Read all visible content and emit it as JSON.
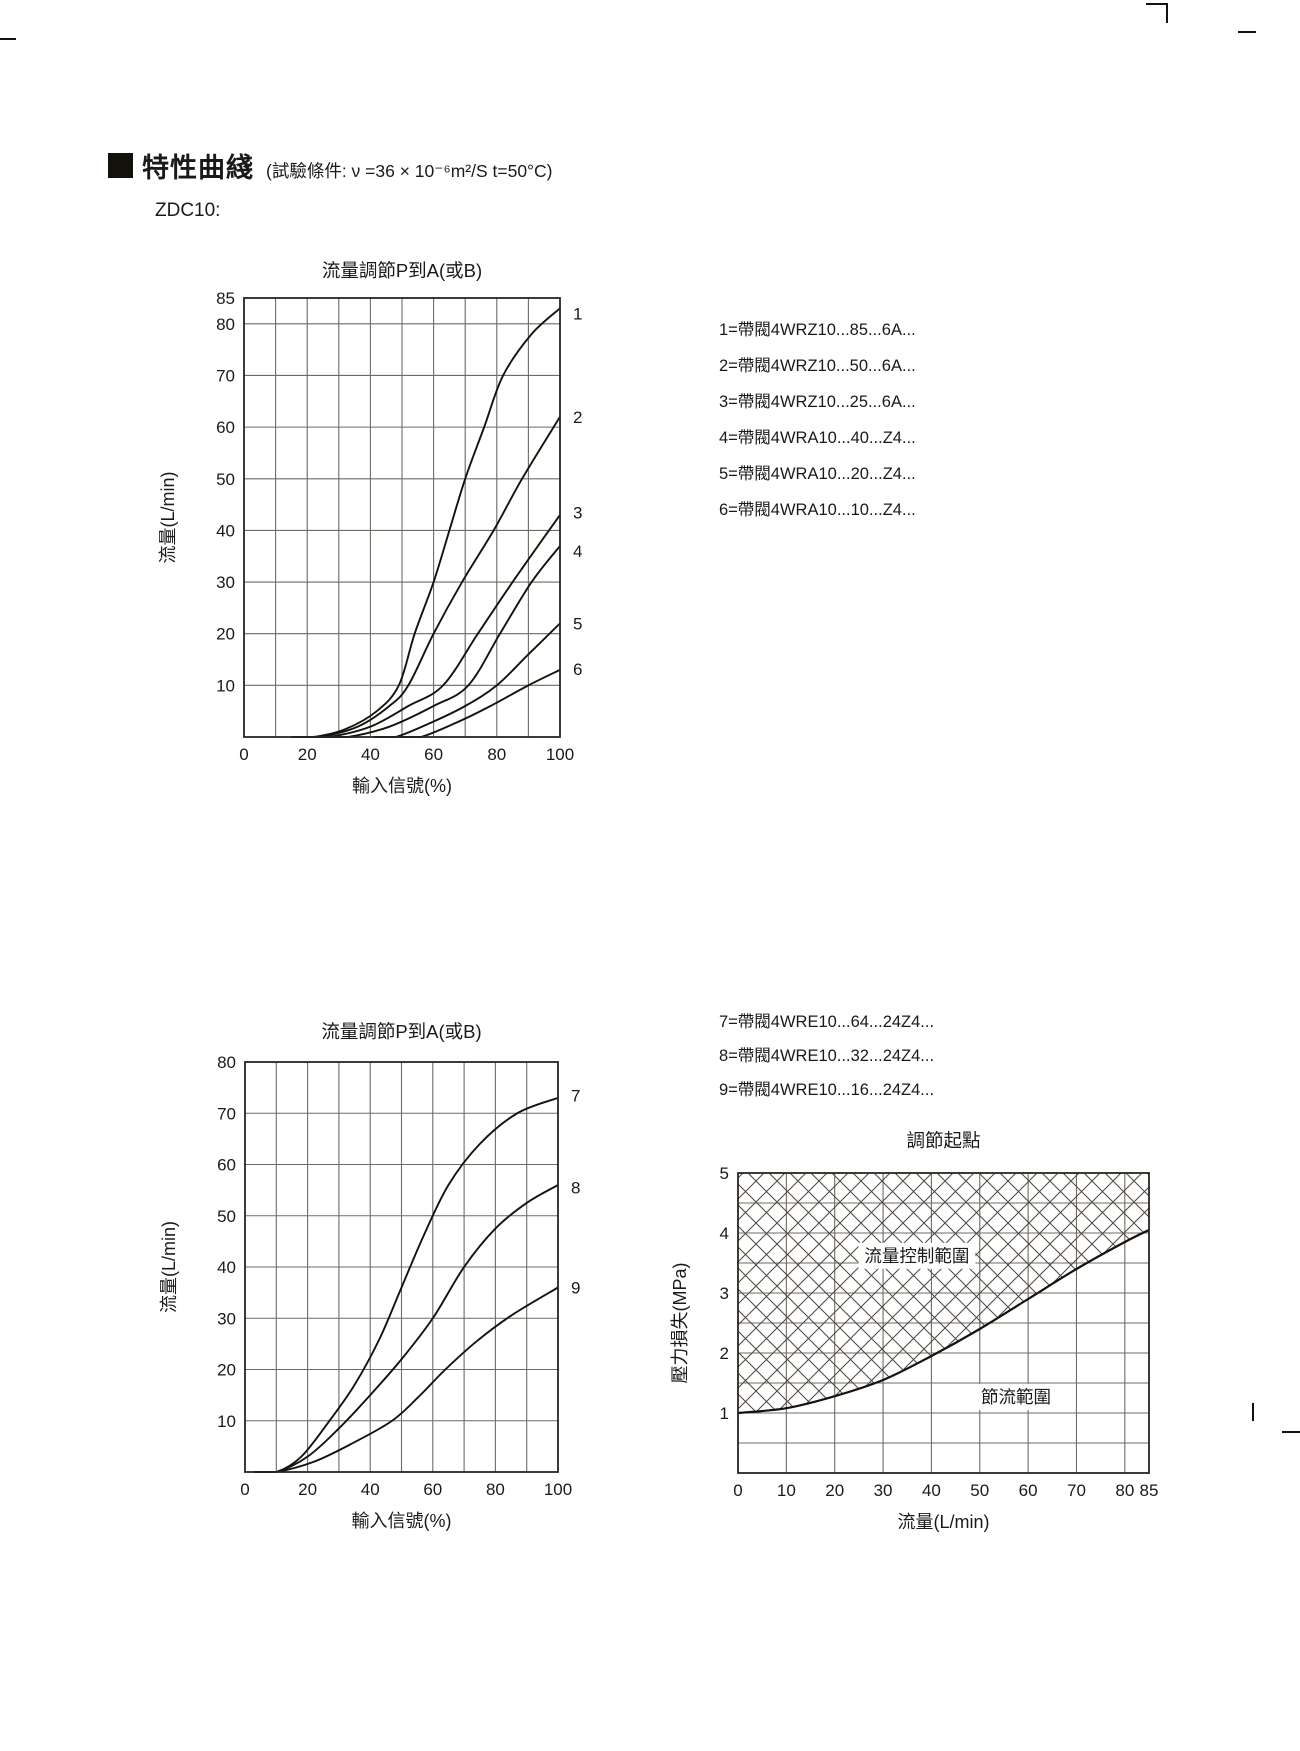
{
  "page": {
    "header_title": "特性曲綫",
    "header_condition": "(試驗條件: ν =36 × 10⁻⁶m²/S   t=50°C)",
    "model_label": "ZDC10:"
  },
  "colors": {
    "ink": "#1c1a18",
    "grid": "#6f6a64",
    "border": "#29251f",
    "curve": "#15120e",
    "hatch": "#4c463e"
  },
  "legend_group1": [
    "1=帶閥4WRZ10...85...6A...",
    "2=帶閥4WRZ10...50...6A...",
    "3=帶閥4WRZ10...25...6A...",
    "4=帶閥4WRA10...40...Z4...",
    "5=帶閥4WRA10...20...Z4...",
    "6=帶閥4WRA10...10...Z4..."
  ],
  "legend_group2": [
    "7=帶閥4WRE10...64...24Z4...",
    "8=帶閥4WRE10...32...24Z4...",
    "9=帶閥4WRE10...16...24Z4..."
  ],
  "chart_data": [
    {
      "type": "line",
      "title": "流量調節P到A(或B)",
      "xlabel": "輸入信號(%)",
      "ylabel": "流量(L/min)",
      "xlim": [
        0,
        100
      ],
      "ylim": [
        0,
        85
      ],
      "xticks": [
        0,
        20,
        40,
        60,
        80,
        100
      ],
      "yticks": [
        10,
        20,
        30,
        40,
        50,
        60,
        70,
        80,
        85
      ],
      "xgrid": [
        10,
        20,
        30,
        40,
        50,
        60,
        70,
        80,
        90
      ],
      "ygrid": [
        10,
        20,
        30,
        40,
        50,
        60,
        70,
        80
      ],
      "grid": true,
      "legend_position": "right-of-plot",
      "series": [
        {
          "name": "1",
          "label_y": 82,
          "points": [
            [
              22,
              0
            ],
            [
              32,
              1.5
            ],
            [
              42,
              5
            ],
            [
              49,
              10
            ],
            [
              54,
              20
            ],
            [
              60,
              30
            ],
            [
              65,
              40
            ],
            [
              70,
              50
            ],
            [
              76,
              60
            ],
            [
              82,
              70
            ],
            [
              91,
              78
            ],
            [
              100,
              83
            ]
          ]
        },
        {
          "name": "2",
          "label_y": 62,
          "points": [
            [
              24,
              0
            ],
            [
              36,
              2
            ],
            [
              46,
              6
            ],
            [
              52,
              10
            ],
            [
              60,
              20
            ],
            [
              69,
              30
            ],
            [
              79,
              40
            ],
            [
              88,
              50
            ],
            [
              100,
              62
            ]
          ]
        },
        {
          "name": "3",
          "label_y": 43.5,
          "points": [
            [
              27,
              0
            ],
            [
              40,
              2
            ],
            [
              52,
              6
            ],
            [
              63,
              10
            ],
            [
              74,
              20
            ],
            [
              85,
              30
            ],
            [
              100,
              43
            ]
          ]
        },
        {
          "name": "4",
          "label_y": 36,
          "points": [
            [
              33,
              0
            ],
            [
              46,
              2
            ],
            [
              60,
              6
            ],
            [
              71,
              10
            ],
            [
              81,
              20
            ],
            [
              91,
              30
            ],
            [
              100,
              37
            ]
          ]
        },
        {
          "name": "5",
          "label_y": 22,
          "points": [
            [
              48,
              0
            ],
            [
              60,
              3
            ],
            [
              70,
              6
            ],
            [
              80,
              10
            ],
            [
              90,
              16
            ],
            [
              100,
              22
            ]
          ]
        },
        {
          "name": "6",
          "label_y": 13.2,
          "points": [
            [
              56,
              0
            ],
            [
              68,
              3
            ],
            [
              78,
              6
            ],
            [
              90,
              10
            ],
            [
              100,
              13
            ]
          ]
        }
      ]
    },
    {
      "type": "line",
      "title": "流量調節P到A(或B)",
      "xlabel": "輸入信號(%)",
      "ylabel": "流量(L/min)",
      "xlim": [
        0,
        100
      ],
      "ylim": [
        0,
        80
      ],
      "xticks": [
        0,
        20,
        40,
        60,
        80,
        100
      ],
      "yticks": [
        10,
        20,
        30,
        40,
        50,
        60,
        70,
        80
      ],
      "xgrid": [
        10,
        20,
        30,
        40,
        50,
        60,
        70,
        80,
        90
      ],
      "ygrid": [
        10,
        20,
        30,
        40,
        50,
        60,
        70
      ],
      "grid": true,
      "legend_position": "right-of-plot",
      "series": [
        {
          "name": "7",
          "label_y": 73.5,
          "points": [
            [
              10,
              0
            ],
            [
              18,
              3
            ],
            [
              27,
              10
            ],
            [
              35,
              17
            ],
            [
              43,
              26
            ],
            [
              50,
              36
            ],
            [
              57,
              46
            ],
            [
              65,
              56
            ],
            [
              75,
              64
            ],
            [
              87,
              70
            ],
            [
              100,
              73
            ]
          ]
        },
        {
          "name": "8",
          "label_y": 55.5,
          "points": [
            [
              10,
              0
            ],
            [
              20,
              3
            ],
            [
              30,
              8.5
            ],
            [
              40,
              15
            ],
            [
              50,
              22
            ],
            [
              60,
              30
            ],
            [
              70,
              40
            ],
            [
              80,
              47.5
            ],
            [
              90,
              52.5
            ],
            [
              100,
              56
            ]
          ]
        },
        {
          "name": "9",
          "label_y": 36,
          "points": [
            [
              10,
              0
            ],
            [
              22,
              2
            ],
            [
              34,
              5.5
            ],
            [
              47,
              10
            ],
            [
              56,
              15
            ],
            [
              64,
              20
            ],
            [
              74,
              25.5
            ],
            [
              85,
              30.5
            ],
            [
              100,
              36
            ]
          ]
        }
      ]
    },
    {
      "type": "line",
      "title": "調節起點",
      "xlabel": "流量(L/min)",
      "ylabel": "壓力損失(MPa)",
      "xlim": [
        0,
        85
      ],
      "ylim": [
        0,
        5
      ],
      "xticks": [
        0,
        10,
        20,
        30,
        40,
        50,
        60,
        70,
        80,
        85
      ],
      "yticks": [
        1,
        2,
        3,
        4,
        5
      ],
      "xgrid": [
        10,
        20,
        30,
        40,
        50,
        60,
        70,
        80
      ],
      "ygrid": [
        0.5,
        1,
        1.5,
        2,
        2.5,
        3,
        3.5,
        4,
        4.5
      ],
      "grid": true,
      "hatch_above_curve": true,
      "series": [
        {
          "name": "setting-start-curve",
          "label_y": null,
          "points": [
            [
              0,
              1
            ],
            [
              10,
              1.08
            ],
            [
              20,
              1.28
            ],
            [
              30,
              1.55
            ],
            [
              40,
              1.95
            ],
            [
              50,
              2.4
            ],
            [
              60,
              2.9
            ],
            [
              70,
              3.4
            ],
            [
              80,
              3.85
            ],
            [
              85,
              4.05
            ]
          ]
        }
      ],
      "annotations": [
        {
          "text": "流量控制範圍",
          "x": 37,
          "y": 3.62
        },
        {
          "text": "節流範圍",
          "x": 57.5,
          "y": 1.27
        }
      ]
    }
  ]
}
